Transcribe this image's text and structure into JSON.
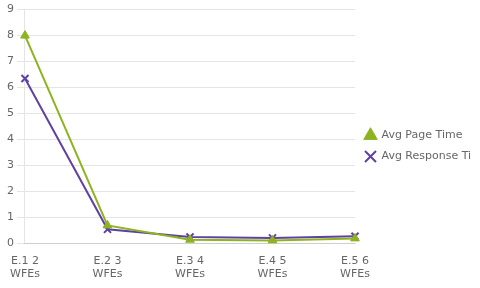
{
  "chart_data": {
    "type": "line",
    "categories": [
      "E.1 2\nWFEs",
      "E.2 3\nWFEs",
      "E.3 4\nWFEs",
      "E.4 5\nWFEs",
      "E.5 6\nWFEs"
    ],
    "series": [
      {
        "name": "Avg Page Time",
        "color": "#8DB320",
        "marker": "triangle",
        "values": [
          8.0,
          0.7,
          0.15,
          0.12,
          0.2
        ]
      },
      {
        "name": "Avg Response Time",
        "color": "#6040A0",
        "marker": "x",
        "values": [
          6.35,
          0.55,
          0.25,
          0.22,
          0.28
        ]
      }
    ],
    "ylim": [
      0,
      9
    ],
    "yticks": [
      0,
      1,
      2,
      3,
      4,
      5,
      6,
      7,
      8,
      9
    ],
    "grid": true,
    "legend": "right"
  }
}
